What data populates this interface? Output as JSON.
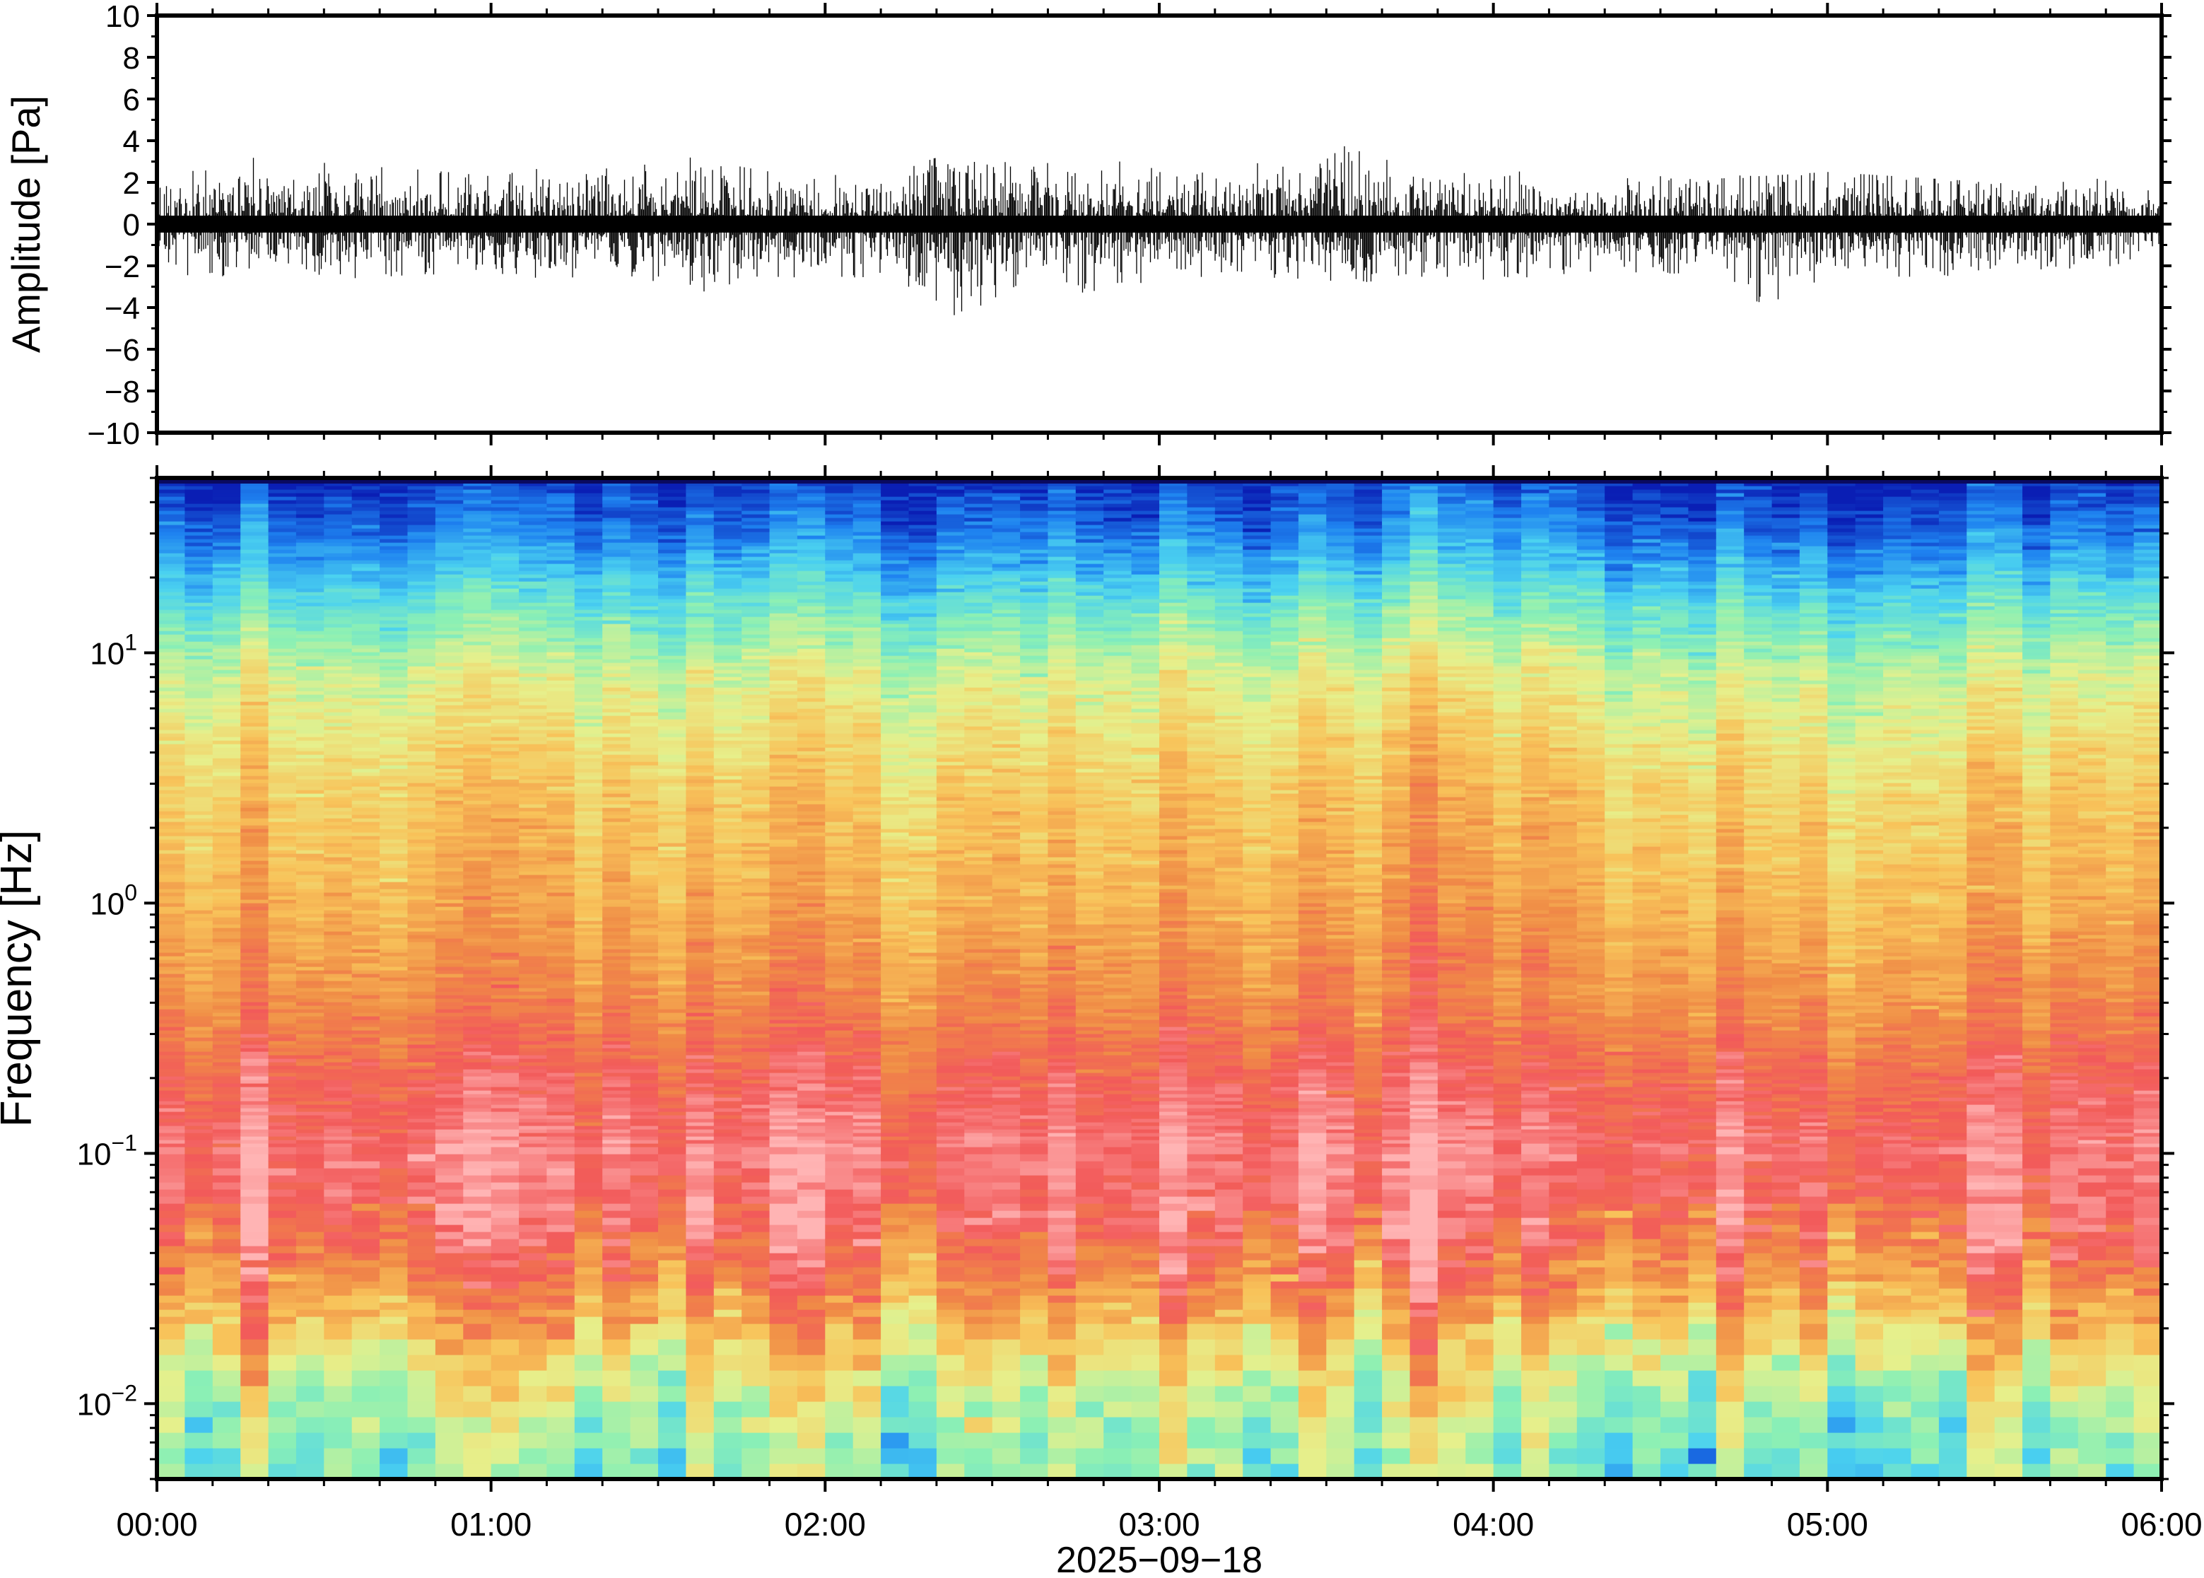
{
  "chart_data": [
    {
      "type": "line",
      "title": "",
      "xlabel": "",
      "ylabel": "Amplitude [Pa]",
      "xlim": [
        "00:00",
        "06:00"
      ],
      "ylim": [
        -10,
        10
      ],
      "yticks": [
        "10",
        "8",
        "6",
        "4",
        "2",
        "0",
        "−2",
        "−4",
        "−6",
        "−8",
        "−10"
      ],
      "ytick_values": [
        10,
        8,
        6,
        4,
        2,
        0,
        -2,
        -4,
        -6,
        -8,
        -10
      ],
      "series": [
        {
          "description_envelope": "waveform min/max envelope sampled every ~12 minutes",
          "x": [
            "00:00",
            "00:12",
            "00:24",
            "00:36",
            "00:48",
            "01:00",
            "01:12",
            "01:24",
            "01:36",
            "01:48",
            "02:00",
            "02:12",
            "02:24",
            "02:36",
            "02:48",
            "03:00",
            "03:12",
            "03:24",
            "03:36",
            "03:48",
            "04:00",
            "04:12",
            "04:24",
            "04:36",
            "04:48",
            "05:00",
            "05:12",
            "05:24",
            "05:36",
            "05:48",
            "06:00"
          ],
          "max": [
            2.5,
            2.6,
            3.9,
            2.8,
            2.6,
            2.3,
            2.8,
            2.7,
            3.2,
            2.6,
            2.7,
            2.4,
            3.6,
            2.7,
            3.4,
            2.6,
            2.4,
            3.5,
            3.8,
            2.6,
            2.6,
            2.4,
            2.2,
            2.4,
            2.3,
            2.5,
            2.3,
            2.1,
            2.1,
            2.2,
            1.5
          ],
          "min": [
            -2.4,
            -2.5,
            -2.3,
            -2.6,
            -2.4,
            -2.5,
            -2.6,
            -2.4,
            -3.4,
            -2.5,
            -2.6,
            -2.5,
            -4.5,
            -2.7,
            -3.4,
            -2.6,
            -2.5,
            -2.6,
            -2.8,
            -2.5,
            -2.7,
            -2.4,
            -2.3,
            -2.4,
            -4.0,
            -2.5,
            -3.2,
            -2.3,
            -2.6,
            -2.2,
            -1.4
          ]
        }
      ]
    },
    {
      "type": "heatmap",
      "title": "",
      "xlabel": "2025−09−18",
      "ylabel": "Frequency [Hz]",
      "xticks": [
        "00:00",
        "01:00",
        "02:00",
        "03:00",
        "04:00",
        "05:00",
        "06:00"
      ],
      "yscale": "log",
      "ylim": [
        0.005,
        50
      ],
      "yticks": [
        {
          "base": "10",
          "exp": "−2",
          "value": 0.01
        },
        {
          "base": "10",
          "exp": "−1",
          "value": 0.1
        },
        {
          "base": "10",
          "exp": "0",
          "value": 1
        },
        {
          "base": "10",
          "exp": "1",
          "value": 10
        }
      ],
      "colormap": [
        "#ffb4b4",
        "#f25a5a",
        "#f08c46",
        "#f8c35a",
        "#e6f08c",
        "#8cf0b4",
        "#4bd2f0",
        "#1e82f0",
        "#0a1eb4"
      ],
      "approx_level_profile": [
        {
          "freq_hz": 0.006,
          "level": 0.62
        },
        {
          "freq_hz": 0.012,
          "level": 0.5
        },
        {
          "freq_hz": 0.025,
          "level": 0.28
        },
        {
          "freq_hz": 0.05,
          "level": 0.12
        },
        {
          "freq_hz": 0.1,
          "level": 0.07
        },
        {
          "freq_hz": 0.2,
          "level": 0.14
        },
        {
          "freq_hz": 0.4,
          "level": 0.24
        },
        {
          "freq_hz": 1,
          "level": 0.33
        },
        {
          "freq_hz": 3,
          "level": 0.4
        },
        {
          "freq_hz": 8,
          "level": 0.52
        },
        {
          "freq_hz": 15,
          "level": 0.68
        },
        {
          "freq_hz": 30,
          "level": 0.88
        },
        {
          "freq_hz": 50,
          "level": 0.98
        }
      ]
    }
  ]
}
